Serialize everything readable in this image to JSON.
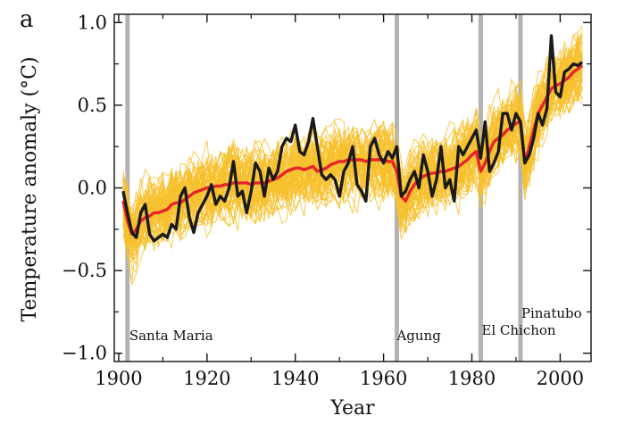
{
  "chart_data": {
    "type": "line",
    "panel_label": "a",
    "xlabel": "Year",
    "ylabel": "Temperature anomaly (°C)",
    "xlim": [
      1899,
      2007
    ],
    "ylim": [
      -1.05,
      1.05
    ],
    "x_ticks": [
      1900,
      1920,
      1940,
      1960,
      1980,
      2000
    ],
    "y_ticks": [
      -1.0,
      -0.5,
      0.0,
      0.5,
      1.0
    ],
    "y_tick_labels": [
      "−1.0",
      "−0.5",
      "0.0",
      "0.5",
      "1.0"
    ],
    "grid": false,
    "volcanoes": [
      {
        "name": "Santa Maria",
        "year": 1902
      },
      {
        "name": "Agung",
        "year": 1963
      },
      {
        "name": "El Chichon",
        "year": 1982
      },
      {
        "name": "Pinatubo",
        "year": 1991
      }
    ],
    "colors": {
      "observed": "#1a1a1a",
      "ensemble_mean": "#e8252a",
      "members": "#f7c12e",
      "volcano_bar": "#b3b3b3"
    },
    "ensemble_member_count": 58,
    "series": [
      {
        "role": "observed",
        "x": [
          1901,
          1902,
          1903,
          1904,
          1905,
          1906,
          1907,
          1908,
          1909,
          1910,
          1911,
          1912,
          1913,
          1914,
          1915,
          1916,
          1917,
          1918,
          1919,
          1920,
          1921,
          1922,
          1923,
          1924,
          1925,
          1926,
          1927,
          1928,
          1929,
          1930,
          1931,
          1932,
          1933,
          1934,
          1935,
          1936,
          1937,
          1938,
          1939,
          1940,
          1941,
          1942,
          1943,
          1944,
          1945,
          1946,
          1947,
          1948,
          1949,
          1950,
          1951,
          1952,
          1953,
          1954,
          1955,
          1956,
          1957,
          1958,
          1959,
          1960,
          1961,
          1962,
          1963,
          1964,
          1965,
          1966,
          1967,
          1968,
          1969,
          1970,
          1971,
          1972,
          1973,
          1974,
          1975,
          1976,
          1977,
          1978,
          1979,
          1980,
          1981,
          1982,
          1983,
          1984,
          1985,
          1986,
          1987,
          1988,
          1989,
          1990,
          1991,
          1992,
          1993,
          1994,
          1995,
          1996,
          1997,
          1998,
          1999,
          2000,
          2001,
          2002,
          2003,
          2004,
          2005
        ],
        "values": [
          -0.02,
          -0.15,
          -0.27,
          -0.3,
          -0.15,
          -0.1,
          -0.28,
          -0.32,
          -0.3,
          -0.28,
          -0.3,
          -0.22,
          -0.25,
          -0.05,
          0.0,
          -0.18,
          -0.27,
          -0.15,
          -0.1,
          -0.05,
          0.02,
          -0.1,
          -0.05,
          -0.08,
          0.0,
          0.16,
          -0.05,
          -0.02,
          -0.15,
          -0.02,
          0.15,
          0.1,
          -0.05,
          0.12,
          0.05,
          0.1,
          0.25,
          0.3,
          0.28,
          0.38,
          0.22,
          0.2,
          0.28,
          0.42,
          0.25,
          0.08,
          0.05,
          0.08,
          0.05,
          -0.05,
          0.1,
          0.15,
          0.25,
          0.02,
          -0.02,
          -0.08,
          0.25,
          0.3,
          0.2,
          0.15,
          0.22,
          0.18,
          0.25,
          -0.05,
          -0.02,
          0.05,
          0.1,
          0.0,
          0.2,
          0.1,
          -0.05,
          0.05,
          0.25,
          0.0,
          0.05,
          -0.08,
          0.25,
          0.2,
          0.25,
          0.3,
          0.35,
          0.18,
          0.4,
          0.1,
          0.15,
          0.22,
          0.45,
          0.45,
          0.35,
          0.45,
          0.4,
          0.15,
          0.2,
          0.3,
          0.45,
          0.38,
          0.48,
          0.92,
          0.58,
          0.55,
          0.7,
          0.72,
          0.75,
          0.74,
          0.76
        ]
      },
      {
        "role": "ensemble_mean",
        "x": [
          1901,
          1902,
          1903,
          1904,
          1905,
          1906,
          1907,
          1908,
          1909,
          1910,
          1911,
          1912,
          1913,
          1914,
          1915,
          1916,
          1917,
          1918,
          1919,
          1920,
          1921,
          1922,
          1923,
          1924,
          1925,
          1926,
          1927,
          1928,
          1929,
          1930,
          1931,
          1932,
          1933,
          1934,
          1935,
          1936,
          1937,
          1938,
          1939,
          1940,
          1941,
          1942,
          1943,
          1944,
          1945,
          1946,
          1947,
          1948,
          1949,
          1950,
          1951,
          1952,
          1953,
          1954,
          1955,
          1956,
          1957,
          1958,
          1959,
          1960,
          1961,
          1962,
          1963,
          1964,
          1965,
          1966,
          1967,
          1968,
          1969,
          1970,
          1971,
          1972,
          1973,
          1974,
          1975,
          1976,
          1977,
          1978,
          1979,
          1980,
          1981,
          1982,
          1983,
          1984,
          1985,
          1986,
          1987,
          1988,
          1989,
          1990,
          1991,
          1992,
          1993,
          1994,
          1995,
          1996,
          1997,
          1998,
          1999,
          2000,
          2001,
          2002,
          2003,
          2004,
          2005
        ],
        "values": [
          -0.08,
          -0.2,
          -0.28,
          -0.25,
          -0.2,
          -0.18,
          -0.17,
          -0.15,
          -0.15,
          -0.14,
          -0.13,
          -0.1,
          -0.09,
          -0.09,
          -0.07,
          -0.05,
          -0.03,
          -0.02,
          -0.01,
          0.0,
          0.0,
          0.01,
          0.01,
          0.02,
          0.02,
          0.03,
          0.03,
          0.03,
          0.03,
          0.02,
          0.03,
          0.03,
          0.03,
          0.04,
          0.05,
          0.06,
          0.08,
          0.1,
          0.11,
          0.12,
          0.12,
          0.11,
          0.12,
          0.13,
          0.1,
          0.11,
          0.12,
          0.14,
          0.15,
          0.16,
          0.16,
          0.17,
          0.17,
          0.17,
          0.17,
          0.16,
          0.17,
          0.17,
          0.17,
          0.17,
          0.16,
          0.16,
          0.1,
          -0.05,
          -0.08,
          -0.02,
          0.02,
          0.05,
          0.07,
          0.08,
          0.09,
          0.09,
          0.1,
          0.1,
          0.11,
          0.12,
          0.13,
          0.15,
          0.17,
          0.2,
          0.22,
          0.1,
          0.15,
          0.22,
          0.28,
          0.3,
          0.32,
          0.35,
          0.37,
          0.39,
          0.4,
          0.15,
          0.25,
          0.35,
          0.45,
          0.5,
          0.55,
          0.6,
          0.62,
          0.63,
          0.65,
          0.67,
          0.7,
          0.72,
          0.74
        ]
      }
    ]
  }
}
